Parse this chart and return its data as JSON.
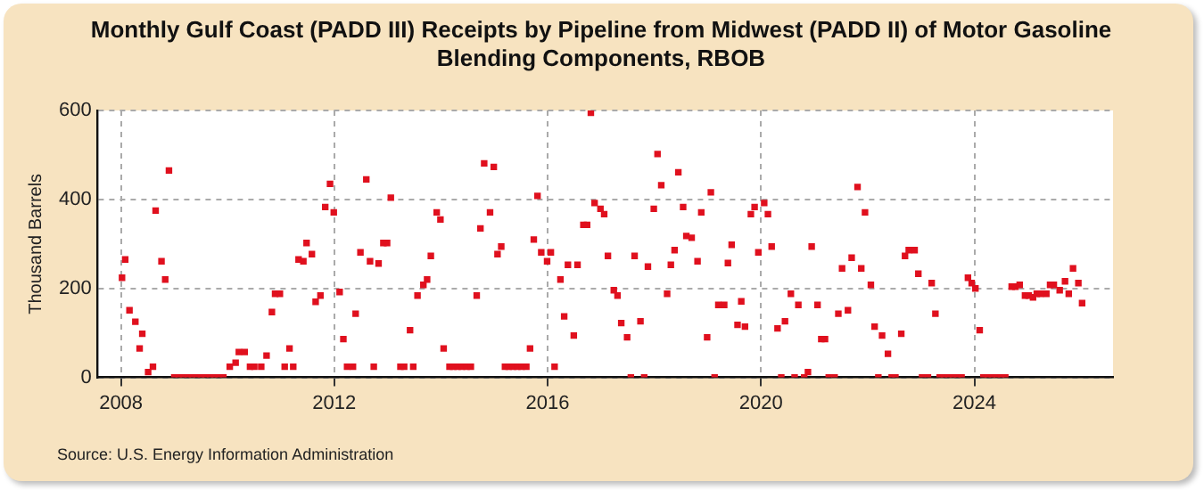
{
  "chart_data": {
    "type": "scatter",
    "title": "Monthly Gulf Coast (PADD III) Receipts by Pipeline from  Midwest (PADD II) of Motor Gasoline Blending Components, RBOB",
    "ylabel": "Thousand Barrels",
    "annotations": [
      "Source: U.S. Energy Information Administration"
    ],
    "x": [
      2008.02,
      2008.08,
      2008.16,
      2008.27,
      2008.35,
      2008.4,
      2008.51,
      2008.6,
      2008.65,
      2008.76,
      2008.83,
      2008.9,
      2009.0,
      2009.08,
      2009.17,
      2009.25,
      2009.33,
      2009.42,
      2009.5,
      2009.58,
      2009.67,
      2009.75,
      2009.83,
      2009.92,
      2010.04,
      2010.15,
      2010.21,
      2010.32,
      2010.42,
      2010.5,
      2010.63,
      2010.73,
      2010.83,
      2010.89,
      2010.98,
      2011.07,
      2011.16,
      2011.23,
      2011.33,
      2011.42,
      2011.48,
      2011.58,
      2011.65,
      2011.74,
      2011.83,
      2011.92,
      2011.99,
      2012.1,
      2012.17,
      2012.24,
      2012.35,
      2012.4,
      2012.49,
      2012.6,
      2012.67,
      2012.74,
      2012.83,
      2012.92,
      2012.99,
      2013.06,
      2013.24,
      2013.31,
      2013.42,
      2013.48,
      2013.56,
      2013.67,
      2013.74,
      2013.81,
      2013.92,
      2013.99,
      2014.05,
      2014.16,
      2014.23,
      2014.31,
      2014.39,
      2014.48,
      2014.56,
      2014.67,
      2014.74,
      2014.81,
      2014.92,
      2014.99,
      2015.06,
      2015.13,
      2015.2,
      2015.27,
      2015.35,
      2015.43,
      2015.51,
      2015.6,
      2015.67,
      2015.74,
      2015.81,
      2015.88,
      2015.99,
      2016.06,
      2016.13,
      2016.24,
      2016.31,
      2016.38,
      2016.49,
      2016.56,
      2016.67,
      2016.74,
      2016.81,
      2016.88,
      2016.99,
      2017.06,
      2017.13,
      2017.24,
      2017.31,
      2017.38,
      2017.49,
      2017.56,
      2017.63,
      2017.74,
      2017.81,
      2017.88,
      2017.99,
      2018.06,
      2018.13,
      2018.24,
      2018.31,
      2018.38,
      2018.45,
      2018.54,
      2018.6,
      2018.7,
      2018.81,
      2018.88,
      2018.99,
      2019.06,
      2019.13,
      2019.2,
      2019.31,
      2019.38,
      2019.45,
      2019.56,
      2019.63,
      2019.7,
      2019.81,
      2019.88,
      2019.95,
      2020.06,
      2020.13,
      2020.2,
      2020.31,
      2020.38,
      2020.45,
      2020.56,
      2020.63,
      2020.7,
      2020.81,
      2020.88,
      2020.95,
      2021.06,
      2021.13,
      2021.2,
      2021.27,
      2021.38,
      2021.45,
      2021.52,
      2021.63,
      2021.7,
      2021.81,
      2021.88,
      2021.95,
      2022.06,
      2022.13,
      2022.2,
      2022.27,
      2022.38,
      2022.45,
      2022.52,
      2022.63,
      2022.7,
      2022.77,
      2022.88,
      2022.95,
      2023.02,
      2023.13,
      2023.2,
      2023.27,
      2023.35,
      2023.43,
      2023.51,
      2023.6,
      2023.68,
      2023.76,
      2023.88,
      2023.95,
      2024.02,
      2024.1,
      2024.17,
      2024.25,
      2024.33,
      2024.42,
      2024.5,
      2024.58,
      2024.7,
      2024.77,
      2024.85,
      2024.95,
      2025.02,
      2025.1,
      2025.17,
      2025.24,
      2025.35,
      2025.42,
      2025.49,
      2025.6,
      2025.7,
      2025.77,
      2025.85,
      2025.95,
      2026.02
    ],
    "values": [
      224,
      265,
      151,
      125,
      65,
      98,
      12,
      24,
      375,
      261,
      220,
      465,
      0,
      0,
      0,
      0,
      0,
      0,
      0,
      0,
      0,
      0,
      0,
      0,
      24,
      33,
      57,
      57,
      24,
      24,
      24,
      49,
      147,
      188,
      188,
      24,
      65,
      24,
      265,
      261,
      302,
      277,
      170,
      184,
      383,
      435,
      371,
      192,
      86,
      24,
      24,
      143,
      281,
      445,
      261,
      24,
      256,
      302,
      302,
      404,
      24,
      24,
      106,
      24,
      184,
      208,
      220,
      273,
      371,
      355,
      65,
      24,
      24,
      24,
      24,
      24,
      24,
      184,
      335,
      481,
      371,
      473,
      277,
      294,
      24,
      24,
      24,
      24,
      24,
      24,
      65,
      310,
      408,
      281,
      261,
      281,
      24,
      220,
      137,
      253,
      94,
      253,
      343,
      343,
      595,
      392,
      379,
      367,
      273,
      196,
      184,
      122,
      90,
      0,
      273,
      126,
      0,
      249,
      379,
      502,
      432,
      188,
      253,
      286,
      461,
      383,
      318,
      314,
      261,
      371,
      90,
      416,
      0,
      163,
      163,
      257,
      298,
      118,
      171,
      114,
      367,
      383,
      281,
      392,
      367,
      294,
      110,
      0,
      126,
      188,
      0,
      163,
      0,
      12,
      294,
      163,
      86,
      86,
      0,
      0,
      143,
      245,
      151,
      269,
      428,
      245,
      371,
      208,
      114,
      0,
      94,
      53,
      0,
      0,
      98,
      273,
      286,
      286,
      233,
      0,
      0,
      212,
      143,
      0,
      0,
      0,
      0,
      0,
      0,
      224,
      212,
      200,
      106,
      0,
      0,
      0,
      0,
      0,
      0,
      204,
      204,
      208,
      184,
      184,
      180,
      188,
      188,
      188,
      208,
      208,
      196,
      216,
      188,
      245,
      212,
      167
    ],
    "color": "#e0101e",
    "marker": "square",
    "xlim": [
      2007.55,
      2026.6
    ],
    "ylim": [
      0,
      600
    ],
    "xticks": [
      2008,
      2012,
      2016,
      2020,
      2024
    ],
    "yticks": [
      0,
      200,
      400,
      600
    ],
    "grid": true
  }
}
